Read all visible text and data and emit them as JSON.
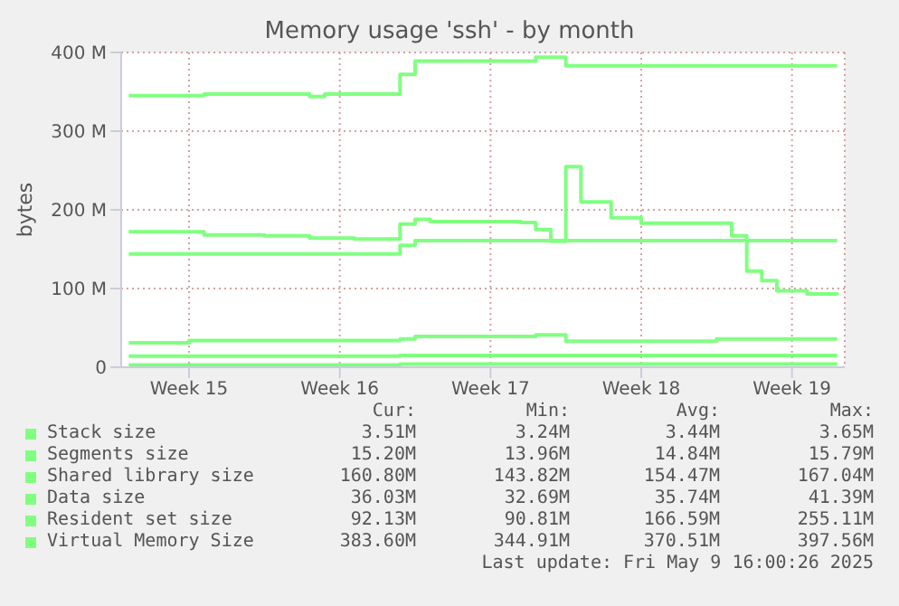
{
  "chart_data": {
    "type": "step",
    "title": "Memory usage 'ssh' - by month",
    "ylabel": "bytes",
    "categories": [
      null,
      null,
      null,
      null,
      "Week 15",
      null,
      null,
      null,
      null,
      null,
      null,
      null,
      null,
      null,
      "Week 16",
      null,
      null,
      null,
      null,
      null,
      null,
      null,
      null,
      null,
      "Week 17",
      null,
      null,
      null,
      null,
      null,
      null,
      null,
      null,
      null,
      "Week 18",
      null,
      null,
      null,
      null,
      null,
      null,
      null,
      null,
      null,
      "Week 19",
      null,
      null,
      null
    ],
    "ylim": [
      0,
      400
    ],
    "yticks": [
      0,
      {
        "value": 100,
        "label": "100 M"
      },
      {
        "value": 200,
        "label": "200 M"
      },
      {
        "value": 300,
        "label": "300 M"
      },
      {
        "value": 400,
        "label": "400 M"
      }
    ],
    "grid": true,
    "legend": "bottom",
    "series": [
      {
        "name": "Stack size",
        "color": "#80ff80",
        "values": [
          3,
          3,
          3,
          3,
          3,
          3,
          3,
          3,
          3,
          3,
          3,
          3,
          3,
          3,
          3,
          3,
          3,
          3,
          4,
          4,
          4,
          4,
          4,
          4,
          4,
          4,
          4,
          4,
          4,
          4,
          4,
          4,
          4,
          4,
          4,
          4,
          4,
          4,
          4,
          4,
          4,
          4,
          4,
          4,
          4,
          4,
          4,
          4
        ]
      },
      {
        "name": "Segments size",
        "color": "#80ff80",
        "values": [
          14,
          14,
          14,
          14,
          14,
          14,
          14,
          14,
          14,
          14,
          14,
          14,
          14,
          14,
          14,
          14,
          14,
          14,
          15,
          15,
          15,
          15,
          15,
          15,
          15,
          15,
          15,
          15,
          15,
          15,
          15,
          15,
          15,
          15,
          15,
          15,
          15,
          15,
          15,
          15,
          15,
          15,
          15,
          15,
          15,
          15,
          15,
          15
        ]
      },
      {
        "name": "Shared library size",
        "color": "#80ff80",
        "values": [
          144,
          144,
          144,
          144,
          144,
          144,
          144,
          144,
          144,
          144,
          144,
          144,
          144,
          144,
          144,
          144,
          144,
          144,
          155,
          161,
          161,
          161,
          161,
          161,
          161,
          161,
          161,
          161,
          161,
          161,
          161,
          161,
          161,
          161,
          161,
          161,
          161,
          161,
          161,
          161,
          161,
          161,
          161,
          161,
          161,
          161,
          161,
          161
        ]
      },
      {
        "name": "Data size",
        "color": "#80ff80",
        "values": [
          31,
          31,
          31,
          31,
          34,
          34,
          34,
          34,
          34,
          34,
          34,
          34,
          34,
          34,
          34,
          34,
          34,
          34,
          36,
          39,
          39,
          39,
          39,
          39,
          39,
          39,
          39,
          41,
          41,
          33,
          33,
          33,
          33,
          33,
          33,
          33,
          33,
          33,
          33,
          36,
          36,
          36,
          36,
          36,
          36,
          36,
          36,
          36
        ]
      },
      {
        "name": "Resident set size",
        "color": "#80ff80",
        "values": [
          172,
          172,
          172,
          172,
          172,
          168,
          168,
          168,
          168,
          167,
          167,
          167,
          164,
          164,
          164,
          163,
          163,
          163,
          182,
          188,
          185,
          185,
          185,
          185,
          185,
          185,
          184,
          175,
          160,
          255,
          210,
          210,
          190,
          190,
          183,
          183,
          183,
          183,
          183,
          183,
          167,
          122,
          110,
          97,
          97,
          93,
          93,
          92
        ]
      },
      {
        "name": "Virtual Memory Size",
        "color": "#80ff80",
        "values": [
          345,
          345,
          345,
          345,
          345,
          347,
          347,
          347,
          347,
          347,
          347,
          347,
          344,
          347,
          347,
          347,
          347,
          347,
          372,
          389,
          389,
          389,
          389,
          389,
          389,
          389,
          389,
          394,
          394,
          383,
          383,
          383,
          383,
          383,
          383,
          383,
          383,
          383,
          383,
          383,
          383,
          383,
          383,
          383,
          383,
          383,
          383,
          383
        ]
      }
    ],
    "annotations": [
      "Cur:",
      "Min:",
      "Avg:",
      "Max:",
      "3.51M",
      "3.24M",
      "3.44M",
      "3.65M",
      "15.20M",
      "13.96M",
      "14.84M",
      "15.79M",
      "160.80M",
      "143.82M",
      "154.47M",
      "167.04M",
      "36.03M",
      "32.69M",
      "35.74M",
      "41.39M",
      "92.13M",
      "90.81M",
      "166.59M",
      "255.11M",
      "383.60M",
      "344.91M",
      "370.51M",
      "397.56M",
      "Last update: Fri May  9 16:00:26 2025"
    ]
  }
}
